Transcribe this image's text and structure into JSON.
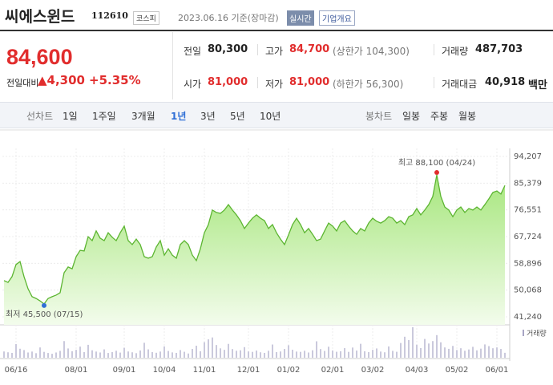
{
  "header": {
    "name": "씨에스윈드",
    "code": "112610",
    "market": "코스피",
    "date": "2023.06.16 기준(장마감)",
    "realtime": "실시간",
    "company_info": "기업개요"
  },
  "quote": {
    "price": "84,600",
    "change_label": "전일대비",
    "change": "▲4,300",
    "change_rate": "+5.35%"
  },
  "stats": [
    {
      "label": "전일",
      "value": "80,300"
    },
    {
      "label": "고가",
      "value": "84,700",
      "note": "(상한가 104,300)"
    },
    {
      "label": "거래량",
      "value": "487,703"
    },
    {
      "label": "시가",
      "value": "81,000"
    },
    {
      "label": "저가",
      "value": "81,000",
      "note": "(하한가 56,300)"
    },
    {
      "label": "거래대금",
      "value": "40,918",
      "unit": "백만"
    }
  ],
  "tabs": {
    "line_label": "선차트",
    "periods": [
      "1일",
      "1주일",
      "3개월",
      "1년",
      "3년",
      "5년",
      "10년"
    ],
    "selected": "1년",
    "candle_label": "봉차트",
    "candles": [
      "일봉",
      "주봉",
      "월봉"
    ]
  },
  "chart_data": {
    "type": "area",
    "color": "#5cb531",
    "categories": [
      null,
      null,
      null,
      "06/16",
      null,
      null,
      null,
      null,
      null,
      null,
      null,
      null,
      null,
      null,
      null,
      null,
      null,
      null,
      "08/01",
      null,
      null,
      null,
      null,
      null,
      null,
      null,
      null,
      null,
      null,
      null,
      "09/01",
      null,
      null,
      null,
      null,
      null,
      null,
      null,
      null,
      null,
      "10/04",
      null,
      null,
      null,
      null,
      null,
      null,
      null,
      null,
      null,
      "11/01",
      null,
      null,
      null,
      null,
      null,
      null,
      null,
      null,
      null,
      null,
      "12/01",
      null,
      null,
      null,
      null,
      null,
      null,
      null,
      null,
      null,
      "01/02",
      null,
      null,
      null,
      null,
      null,
      null,
      null,
      null,
      null,
      null,
      "02/01",
      null,
      null,
      null,
      null,
      null,
      null,
      null,
      null,
      null,
      "03/02",
      null,
      null,
      null,
      null,
      null,
      null,
      null,
      null,
      null,
      null,
      "04/03",
      null,
      null,
      null,
      null,
      null,
      null,
      null,
      null,
      null,
      "05/02",
      null,
      null,
      null,
      null,
      null,
      null,
      null,
      null,
      null,
      "06/01",
      null,
      null
    ],
    "values": [
      53200,
      52600,
      54500,
      58500,
      59500,
      54500,
      50500,
      47900,
      47300,
      46500,
      45500,
      47300,
      47900,
      48400,
      49200,
      55800,
      57700,
      57100,
      61100,
      63200,
      63000,
      67700,
      66400,
      69600,
      67200,
      66400,
      69000,
      67500,
      66400,
      69000,
      71200,
      66400,
      65100,
      66900,
      65100,
      61100,
      60600,
      61100,
      64300,
      66400,
      61600,
      63700,
      61600,
      60600,
      65100,
      66400,
      65100,
      61600,
      59800,
      63700,
      69000,
      71700,
      76500,
      75700,
      75400,
      76500,
      78300,
      76500,
      74900,
      73000,
      70400,
      72200,
      73800,
      74900,
      73800,
      73000,
      70400,
      71700,
      69000,
      66900,
      65100,
      68300,
      71700,
      73800,
      71700,
      69000,
      70400,
      68500,
      66400,
      66900,
      69600,
      72200,
      71200,
      69600,
      72200,
      73000,
      71200,
      69600,
      68500,
      70400,
      69600,
      72200,
      73800,
      72800,
      72200,
      73000,
      74300,
      73800,
      72200,
      73000,
      71700,
      74300,
      74900,
      77000,
      74900,
      76500,
      78300,
      81000,
      88100,
      81000,
      77500,
      76500,
      74300,
      76500,
      77500,
      75700,
      77000,
      76500,
      77500,
      76500,
      78300,
      80200,
      82300,
      82800,
      81800,
      84600
    ],
    "ylim": [
      41240,
      94207
    ],
    "yticks": [
      {
        "value": 41240,
        "label": "41,240"
      },
      {
        "value": 50068,
        "label": "50,068"
      },
      {
        "value": 58896,
        "label": "58,896"
      },
      {
        "value": 67724,
        "label": "67,724"
      },
      {
        "value": 76551,
        "label": "76,551"
      },
      {
        "value": 85379,
        "label": "85,379"
      },
      {
        "value": 94207,
        "label": "94,207"
      }
    ],
    "grid": true,
    "high_label": "최고 88,100 (04/24)",
    "low_label": "최저 45,500 (07/15)",
    "volume": {
      "name": "거래량",
      "color": "#a7a5c4",
      "values": [
        620000,
        540000,
        480000,
        1350000,
        890000,
        760000,
        520000,
        610000,
        450000,
        1020000,
        580000,
        470000,
        390000,
        520000,
        680000,
        1650000,
        920000,
        640000,
        780000,
        1100000,
        560000,
        1280000,
        740000,
        610000,
        520000,
        830000,
        470000,
        560000,
        690000,
        510000,
        980000,
        620000,
        540000,
        450000,
        720000,
        1480000,
        830000,
        560000,
        490000,
        610000,
        1120000,
        670000,
        530000,
        480000,
        760000,
        590000,
        420000,
        870000,
        1190000,
        640000,
        1540000,
        1820000,
        2010000,
        1260000,
        930000,
        780000,
        1370000,
        860000,
        690000,
        740000,
        1050000,
        620000,
        580000,
        710000,
        540000,
        480000,
        690000,
        1310000,
        560000,
        620000,
        870000,
        1240000,
        790000,
        610000,
        580000,
        690000,
        520000,
        740000,
        1630000,
        860000,
        670000,
        1090000,
        720000,
        590000,
        640000,
        950000,
        580000,
        1010000,
        710000,
        1380000,
        640000,
        560000,
        780000,
        920000,
        610000,
        540000,
        1120000,
        680000,
        590000,
        1460000,
        2080000,
        1750000,
        3020000,
        1290000,
        960000,
        1860000,
        1410000,
        1650000,
        2240000,
        1530000,
        1020000,
        880000,
        1170000,
        760000,
        940000,
        690000,
        820000,
        1080000,
        730000,
        900000,
        1320000,
        1150000,
        940000,
        1020000,
        870000,
        487703
      ]
    }
  }
}
